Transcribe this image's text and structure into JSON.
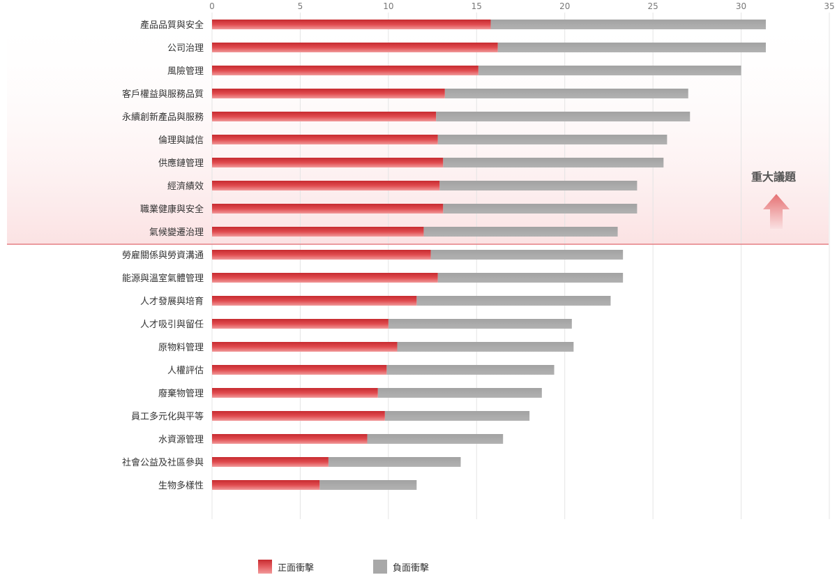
{
  "chart_data": {
    "type": "bar",
    "orientation": "horizontal",
    "stacked": true,
    "xlim": [
      0,
      35
    ],
    "x_ticks": [
      0,
      5,
      10,
      15,
      20,
      25,
      30,
      35
    ],
    "tick_labels": [
      "0",
      "5",
      "10",
      "15",
      "20",
      "25",
      "30",
      "35"
    ],
    "grid": true,
    "legend_position": "bottom",
    "categories": [
      "產品品質與安全",
      "公司治理",
      "風險管理",
      "客戶權益與服務品質",
      "永續創新產品與服務",
      "倫理與誠信",
      "供應鏈管理",
      "經濟績效",
      "職業健康與安全",
      "氣候變遷治理",
      "勞雇關係與勞資溝通",
      "能源與溫室氣體管理",
      "人才發展與培育",
      "人才吸引與留任",
      "原物料管理",
      "人權評估",
      "廢棄物管理",
      "員工多元化與平等",
      "水資源管理",
      "社會公益及社區參與",
      "生物多樣性"
    ],
    "series": [
      {
        "name": "正面衝擊",
        "color": "#d8383c",
        "values": [
          15.8,
          16.2,
          15.1,
          13.2,
          12.7,
          12.8,
          13.1,
          12.9,
          13.1,
          12.0,
          12.4,
          12.8,
          11.6,
          10.0,
          10.5,
          9.9,
          9.4,
          9.8,
          8.8,
          6.6,
          6.1
        ]
      },
      {
        "name": "負面衝擊",
        "color": "#a8a8a8",
        "values": [
          15.6,
          15.2,
          14.9,
          13.8,
          14.4,
          13.0,
          12.5,
          11.2,
          11.0,
          11.0,
          10.9,
          10.5,
          11.0,
          10.4,
          10.0,
          9.5,
          9.3,
          8.2,
          7.7,
          7.5,
          5.5
        ]
      }
    ],
    "annotation": {
      "text": "重大議題",
      "threshold_after_index": 9,
      "color": "#e57f83"
    }
  },
  "legend": {
    "positive_label": "正面衝擊",
    "negative_label": "負面衝擊"
  }
}
